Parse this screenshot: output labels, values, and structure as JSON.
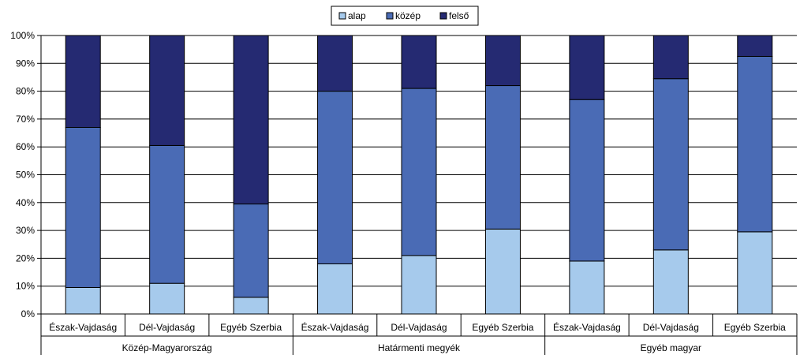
{
  "chart_data": {
    "type": "bar",
    "stacked": true,
    "percent": true,
    "title": "",
    "xlabel": "",
    "ylabel": "",
    "ylim": [
      0,
      100
    ],
    "yticks": [
      "0%",
      "10%",
      "20%",
      "30%",
      "40%",
      "50%",
      "60%",
      "70%",
      "80%",
      "90%",
      "100%"
    ],
    "grid": true,
    "legend": "top-center",
    "categories": [
      "Észak-Vajdaság",
      "Dél-Vajdaság",
      "Egyéb Szerbia",
      "Észak-Vajdaság",
      "Dél-Vajdaság",
      "Egyéb Szerbia",
      "Észak-Vajdaság",
      "Dél-Vajdaság",
      "Egyéb Szerbia"
    ],
    "groups": [
      {
        "label": "Közép-Magyarország",
        "span": 3
      },
      {
        "label": "Határmenti megyék",
        "span": 3
      },
      {
        "label": "Egyéb magyar",
        "span": 3
      }
    ],
    "series": [
      {
        "name": "alap",
        "color": "#a6caec",
        "values": [
          9.5,
          11,
          6,
          18,
          21,
          30.5,
          19,
          23,
          29.5
        ]
      },
      {
        "name": "közép",
        "color": "#4a6bb5",
        "values": [
          57.5,
          49.5,
          33.5,
          62,
          60,
          51.5,
          58,
          61.5,
          63
        ]
      },
      {
        "name": "felső",
        "color": "#252a72",
        "values": [
          33,
          39.5,
          60.5,
          20,
          19,
          18,
          23,
          15.5,
          7.5
        ]
      }
    ]
  }
}
